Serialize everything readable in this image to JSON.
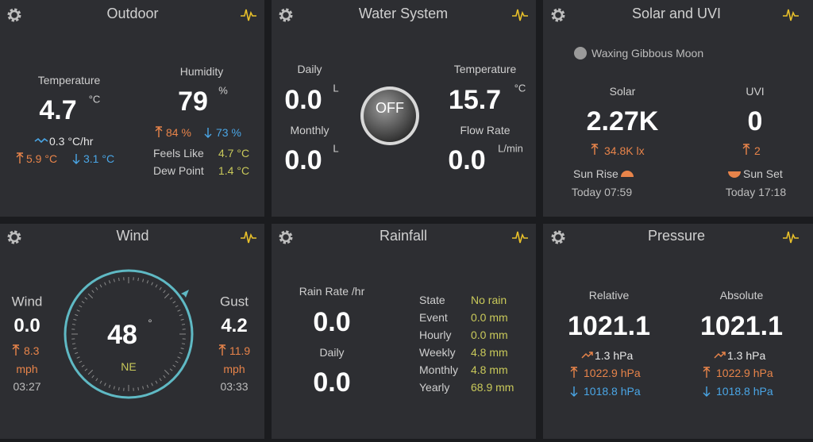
{
  "outdoor": {
    "title": "Outdoor",
    "temperature": {
      "label": "Temperature",
      "value": "4.7",
      "unit": "°C",
      "trend": "0.3 °C/hr",
      "high": "5.9 °C",
      "low": "3.1 °C"
    },
    "humidity": {
      "label": "Humidity",
      "value": "79",
      "unit": "%",
      "high": "84 %",
      "low": "73 %"
    },
    "feels_like": {
      "label": "Feels Like",
      "value": "4.7 °C"
    },
    "dew_point": {
      "label": "Dew Point",
      "value": "1.4 °C"
    }
  },
  "water": {
    "title": "Water System",
    "daily": {
      "label": "Daily",
      "value": "0.0",
      "unit": "L"
    },
    "monthly": {
      "label": "Monthly",
      "value": "0.0",
      "unit": "L"
    },
    "switch": "OFF",
    "temperature": {
      "label": "Temperature",
      "value": "15.7",
      "unit": "°C"
    },
    "flow_rate": {
      "label": "Flow Rate",
      "value": "0.0",
      "unit": "L/min"
    }
  },
  "solar": {
    "title": "Solar and UVI",
    "moon": "Waxing Gibbous Moon",
    "solar": {
      "label": "Solar",
      "value": "2.27K",
      "high": "34.8K lx"
    },
    "uvi": {
      "label": "UVI",
      "value": "0",
      "high": "2"
    },
    "sunrise": {
      "label": "Sun Rise",
      "time": "Today 07:59"
    },
    "sunset": {
      "label": "Sun Set",
      "time": "Today 17:18"
    }
  },
  "wind": {
    "title": "Wind",
    "wind": {
      "label": "Wind",
      "value": "0.0",
      "high": "8.3",
      "unit": "mph",
      "time": "03:27"
    },
    "gust": {
      "label": "Gust",
      "value": "4.2",
      "high": "11.9",
      "unit": "mph",
      "time": "03:33"
    },
    "direction": {
      "value": "48",
      "unit": "°",
      "compass": "NE"
    }
  },
  "rainfall": {
    "title": "Rainfall",
    "rate": {
      "label": "Rain Rate /hr",
      "value": "0.0"
    },
    "daily": {
      "label": "Daily",
      "value": "0.0"
    },
    "stats": [
      [
        "State",
        "No rain"
      ],
      [
        "Event",
        "0.0 mm"
      ],
      [
        "Hourly",
        "0.0 mm"
      ],
      [
        "Weekly",
        "4.8 mm"
      ],
      [
        "Monthly",
        "4.8 mm"
      ],
      [
        "Yearly",
        "68.9 mm"
      ]
    ]
  },
  "pressure": {
    "title": "Pressure",
    "relative": {
      "label": "Relative",
      "value": "1021.1",
      "trend": "1.3 hPa",
      "high": "1022.9 hPa",
      "low": "1018.8 hPa"
    },
    "absolute": {
      "label": "Absolute",
      "value": "1021.1",
      "trend": "1.3 hPa",
      "high": "1022.9 hPa",
      "low": "1018.8 hPa"
    }
  }
}
